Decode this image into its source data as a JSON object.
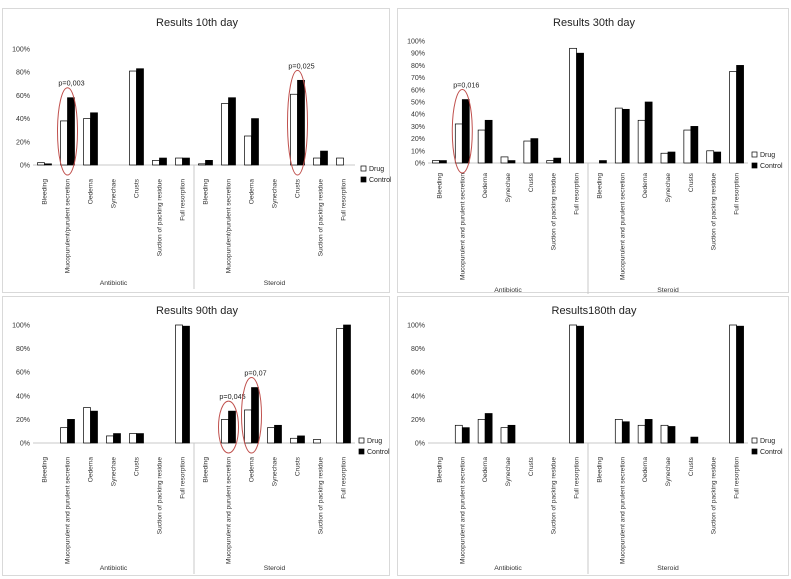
{
  "colors": {
    "drug_fill": "#ffffff",
    "control_fill": "#000000",
    "bar_stroke": "#000000",
    "annotation": "#c0504d",
    "panel_border": "#d9d9d9",
    "axis_line": "#c8c8c8"
  },
  "legend": [
    "Drug",
    "Control"
  ],
  "chart_data": [
    {
      "type": "bar",
      "title": "Results 10th day",
      "ylim": [
        0,
        100
      ],
      "yticks": [
        "0%",
        "20%",
        "40%",
        "60%",
        "80%",
        "100%"
      ],
      "groups": [
        {
          "name": "Antibiotic",
          "categories": [
            "Bleeding",
            "Mucopurulent/purulent secretion",
            "Oedema",
            "Synechae",
            "Crusts",
            "Suction of packing residue",
            "Full resorption"
          ],
          "drug": [
            2,
            38,
            40,
            0,
            81,
            4,
            6
          ],
          "control": [
            1,
            58,
            45,
            0,
            83,
            6,
            6
          ]
        },
        {
          "name": "Steroid",
          "categories": [
            "Bleeding",
            "Mucopurulent/purulent secretion",
            "Oedema",
            "Synechae",
            "Crusts",
            "Suction of packing residue",
            "Full resorption"
          ],
          "drug": [
            1,
            53,
            25,
            0,
            61,
            6,
            6
          ],
          "control": [
            4,
            58,
            40,
            0,
            73,
            12,
            0
          ]
        }
      ],
      "annotations": [
        {
          "text": "p=0,003",
          "group": 0,
          "category": 1
        },
        {
          "text": "p=0,025",
          "group": 1,
          "category": 4
        }
      ],
      "legend_position": "right"
    },
    {
      "type": "bar",
      "title": "Results 30th day",
      "ylim": [
        0,
        100
      ],
      "yticks": [
        "0%",
        "10%",
        "20%",
        "30%",
        "40%",
        "50%",
        "60%",
        "70%",
        "80%",
        "90%",
        "100%"
      ],
      "groups": [
        {
          "name": "Antibiotic",
          "categories": [
            "Bleeding",
            "Mucopurulent and purulent secretion",
            "Oedema",
            "Synechae",
            "Crusts",
            "Suction of packing residue",
            "Full resorption"
          ],
          "drug": [
            2,
            32,
            27,
            5,
            18,
            2,
            94
          ],
          "control": [
            2,
            52,
            35,
            2,
            20,
            4,
            90
          ]
        },
        {
          "name": "Steroid",
          "categories": [
            "Bleeding",
            "Mucopurulent and purulent secretion",
            "Oedema",
            "Synechae",
            "Crusts",
            "Suction of packing residue",
            "Full resorption"
          ],
          "drug": [
            0,
            45,
            35,
            8,
            27,
            10,
            75
          ],
          "control": [
            2,
            44,
            50,
            9,
            30,
            9,
            80
          ]
        }
      ],
      "annotations": [
        {
          "text": "p=0,016",
          "group": 0,
          "category": 1
        }
      ],
      "legend_position": "right"
    },
    {
      "type": "bar",
      "title": "Results 90th day",
      "ylim": [
        0,
        100
      ],
      "yticks": [
        "0%",
        "20%",
        "40%",
        "60%",
        "80%",
        "100%"
      ],
      "groups": [
        {
          "name": "Antibiotic",
          "categories": [
            "Bleeding",
            "Mucopurulent and purulent secretion",
            "Oedema",
            "Synechae",
            "Crusts",
            "Suction of packing residue",
            "Full resorption"
          ],
          "drug": [
            0,
            13,
            30,
            6,
            8,
            0,
            100
          ],
          "control": [
            0,
            20,
            27,
            8,
            8,
            0,
            99
          ]
        },
        {
          "name": "Steroid",
          "categories": [
            "Bleeding",
            "Mucopurulent and purulent secretion",
            "Oedema",
            "Synechae",
            "Crusts",
            "Suction of packing residue",
            "Full resorption"
          ],
          "drug": [
            0,
            20,
            28,
            13,
            4,
            3,
            97
          ],
          "control": [
            0,
            27,
            47,
            15,
            6,
            0,
            100
          ]
        }
      ],
      "annotations": [
        {
          "text": "p=0,045",
          "group": 1,
          "category": 1
        },
        {
          "text": "p=0,07",
          "group": 1,
          "category": 2
        }
      ],
      "legend_position": "right"
    },
    {
      "type": "bar",
      "title": "Results180th day",
      "ylim": [
        0,
        100
      ],
      "yticks": [
        "0%",
        "20%",
        "40%",
        "60%",
        "80%",
        "100%"
      ],
      "groups": [
        {
          "name": "Antibiotic",
          "categories": [
            "Bleeding",
            "Mucopurulent and purulent secretion",
            "Oedema",
            "Synechae",
            "Crusts",
            "Suction of packing residue",
            "Full resorption"
          ],
          "drug": [
            0,
            15,
            20,
            13,
            0,
            0,
            100
          ],
          "control": [
            0,
            13,
            25,
            15,
            0,
            0,
            99
          ]
        },
        {
          "name": "Steroid",
          "categories": [
            "Bleeding",
            "Mucopurulent and purulent secretion",
            "Oedema",
            "Synechae",
            "Crusts",
            "Suction of packing residue",
            "Full resorption"
          ],
          "drug": [
            0,
            20,
            15,
            15,
            0,
            0,
            100
          ],
          "control": [
            0,
            18,
            20,
            14,
            5,
            0,
            99
          ]
        }
      ],
      "annotations": [],
      "legend_position": "right"
    }
  ]
}
